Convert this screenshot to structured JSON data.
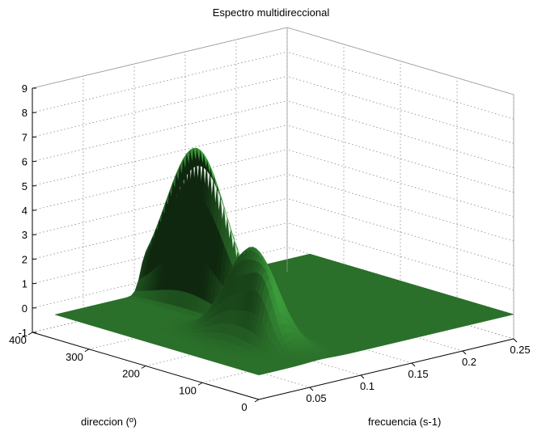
{
  "chart_data": {
    "type": "surface",
    "title": "Espectro multidireccional",
    "xlabel": "frecuencia (s-1)",
    "ylabel": "direccion (º)",
    "zlabel": "",
    "xlim": [
      0,
      0.25
    ],
    "ylim": [
      0,
      400
    ],
    "zlim": [
      -1,
      9
    ],
    "x_ticks": [
      "0.05",
      "0.1",
      "0.15",
      "0.2",
      "0.25"
    ],
    "y_ticks": [
      "0",
      "100",
      "200",
      "300",
      "400"
    ],
    "z_ticks": [
      "-1",
      "0",
      "1",
      "2",
      "3",
      "4",
      "5",
      "6",
      "7",
      "8",
      "9"
    ],
    "grid": true,
    "surface_color": "#3a9a3a",
    "peaks": [
      {
        "frequency": 0.09,
        "direction": 270,
        "height": 6.6
      },
      {
        "frequency": 0.06,
        "direction": 120,
        "height": 3.8
      },
      {
        "frequency": 0.05,
        "direction": 80,
        "height": 1.2
      }
    ]
  }
}
